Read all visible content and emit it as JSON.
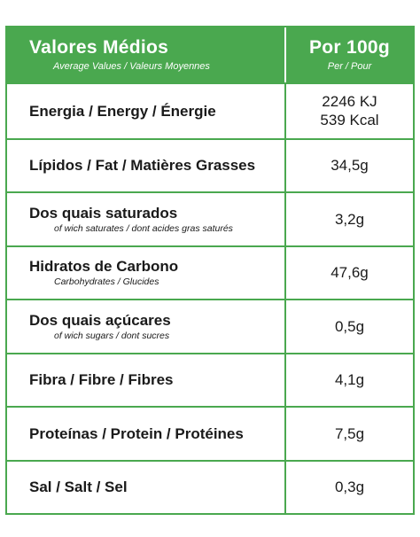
{
  "header": {
    "title": "Valores Médios",
    "subtitle": "Average Values / Valeurs Moyennes",
    "value_title": "Por 100g",
    "value_subtitle": "Per / Pour"
  },
  "rows": [
    {
      "label": "Energia / Energy / Énergie",
      "sub": "",
      "value": "2246 KJ",
      "value2": "539 Kcal"
    },
    {
      "label": "Lípidos / Fat / Matières Grasses",
      "sub": "",
      "value": "34,5g",
      "value2": ""
    },
    {
      "label": "Dos quais saturados",
      "sub": "of wich saturates / dont acides gras saturés",
      "value": "3,2g",
      "value2": ""
    },
    {
      "label": "Hidratos de Carbono",
      "sub": "Carbohydrates / Glucides",
      "value": "47,6g",
      "value2": ""
    },
    {
      "label": "Dos quais açúcares",
      "sub": "of wich sugars / dont sucres",
      "value": "0,5g",
      "value2": ""
    },
    {
      "label": "Fibra / Fibre / Fibres",
      "sub": "",
      "value": "4,1g",
      "value2": ""
    },
    {
      "label": "Proteínas / Protein / Protéines",
      "sub": "",
      "value": "7,5g",
      "value2": ""
    },
    {
      "label": "Sal / Salt / Sel",
      "sub": "",
      "value": "0,3g",
      "value2": ""
    }
  ],
  "colors": {
    "accent": "#4aa84f",
    "text": "#1a1a1a"
  }
}
